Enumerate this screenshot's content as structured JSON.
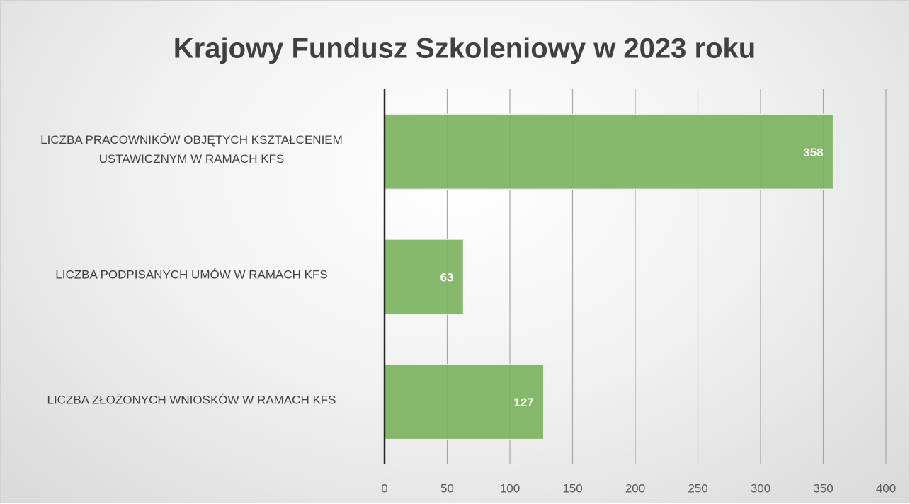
{
  "chart_data": {
    "type": "bar",
    "orientation": "horizontal",
    "title": "Krajowy Fundusz Szkoleniowy w 2023 roku",
    "categories": [
      "LICZBA PRACOWNIKÓW OBJĘTYCH KSZTAŁCENIEM USTAWICZNYM W RAMACH KFS",
      "LICZBA PODPISANYCH UMÓW W RAMACH KFS",
      "LICZBA ZŁOŻONYCH WNIOSKÓW W RAMACH KFS"
    ],
    "values": [
      358,
      63,
      127
    ],
    "color": "#7cb35e",
    "xlim": [
      0,
      400
    ],
    "xticks": [
      0,
      50,
      100,
      150,
      200,
      250,
      300,
      350,
      400
    ],
    "grid": true
  }
}
